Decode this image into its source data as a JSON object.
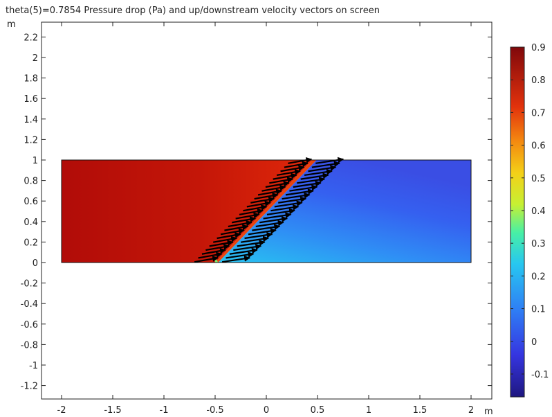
{
  "chart_data": {
    "type": "heatmap",
    "title": "theta(5)=0.7854 Pressure drop (Pa) and up/downstream velocity vectors on screen",
    "xlabel": "m",
    "ylabel": "m",
    "xlim": [
      -2.2,
      2.2
    ],
    "ylim": [
      -1.32,
      2.38
    ],
    "x_ticks": [
      "-2",
      "-1.5",
      "-1",
      "-0.5",
      "0",
      "0.5",
      "1",
      "1.5",
      "2"
    ],
    "y_ticks": [
      "2.2",
      "2",
      "1.8",
      "1.6",
      "1.4",
      "1.2",
      "1",
      "0.8",
      "0.6",
      "0.4",
      "0.2",
      "0",
      "-0.2",
      "-0.4",
      "-0.6",
      "-0.8",
      "-1",
      "-1.2"
    ],
    "colorbar": {
      "min": -0.17,
      "max": 0.9,
      "ticks": [
        "0.9",
        "0.8",
        "0.7",
        "0.6",
        "0.5",
        "0.4",
        "0.3",
        "0.2",
        "0.1",
        "0",
        "-0.1"
      ]
    },
    "domain": {
      "x": [
        -2,
        2
      ],
      "y": [
        0,
        1
      ]
    },
    "screen": {
      "bottom_x": [
        -0.5,
        -0.47
      ],
      "top_x": [
        0.45,
        0.49
      ],
      "angle_rad": 0.7854
    },
    "field": {
      "upstream_value_min": 0.81,
      "upstream_value_max": 0.86,
      "downstream_value_top": -0.02,
      "downstream_value_bottom_near_screen": 0.22
    }
  }
}
